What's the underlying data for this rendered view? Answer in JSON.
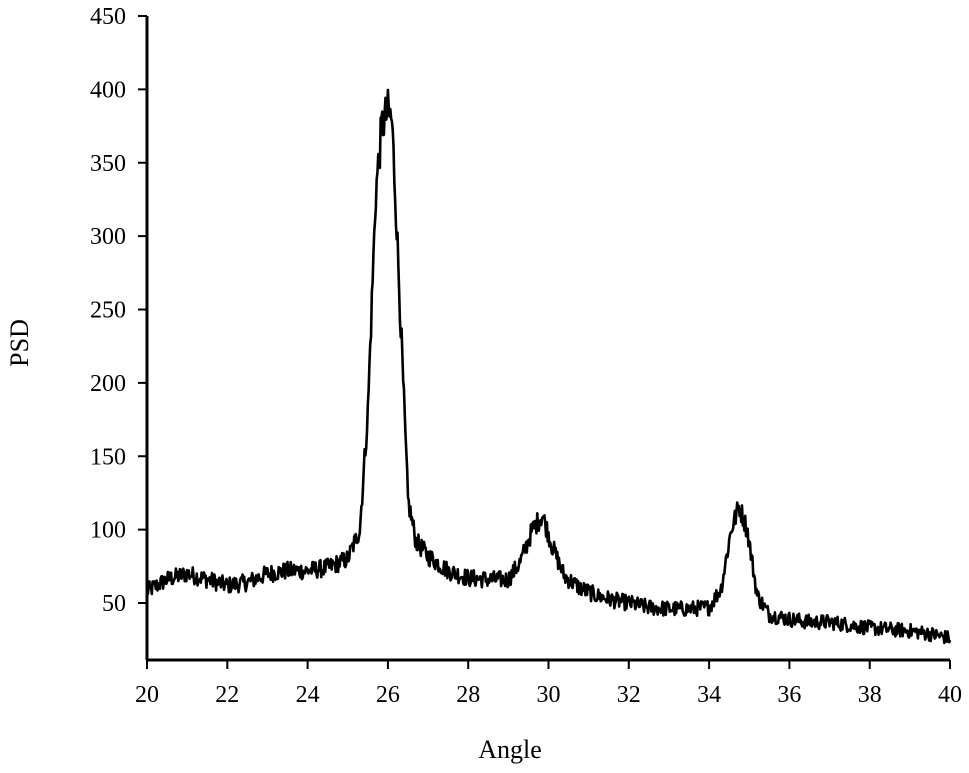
{
  "chart_data": {
    "type": "line",
    "xlabel": "Angle",
    "ylabel": "PSD",
    "xlim": [
      20,
      40
    ],
    "ylim": [
      20,
      450
    ],
    "x_ticks": [
      20,
      22,
      24,
      26,
      28,
      30,
      32,
      34,
      36,
      38,
      40
    ],
    "y_ticks": [
      50,
      100,
      150,
      200,
      250,
      300,
      350,
      400,
      450
    ],
    "grid": false,
    "legend": "none",
    "line_color": "#000000",
    "series": [
      {
        "x": [
          20.0,
          20.5,
          21.0,
          21.5,
          22.0,
          22.5,
          23.0,
          23.5,
          24.0,
          24.5,
          25.0,
          25.3,
          25.5,
          25.7,
          25.85,
          26.0,
          26.1,
          26.2,
          26.35,
          26.5,
          26.7,
          27.0,
          27.5,
          28.0,
          28.5,
          29.0,
          29.3,
          29.6,
          29.85,
          30.1,
          30.4,
          30.8,
          31.2,
          31.6,
          32.0,
          32.5,
          33.0,
          33.5,
          34.0,
          34.3,
          34.55,
          34.75,
          34.95,
          35.2,
          35.5,
          36.0,
          36.5,
          37.0,
          37.5,
          38.0,
          38.5,
          39.0,
          39.5,
          40.0
        ],
        "values": [
          58,
          66,
          70,
          66,
          62,
          64,
          70,
          72,
          72,
          74,
          80,
          100,
          180,
          330,
          375,
          385,
          378,
          320,
          220,
          120,
          92,
          82,
          72,
          67,
          66,
          66,
          78,
          100,
          110,
          88,
          68,
          60,
          55,
          52,
          50,
          47,
          46,
          46,
          47,
          60,
          100,
          116,
          100,
          55,
          42,
          39,
          37,
          37,
          35,
          33,
          32,
          31,
          29,
          26
        ]
      }
    ]
  }
}
